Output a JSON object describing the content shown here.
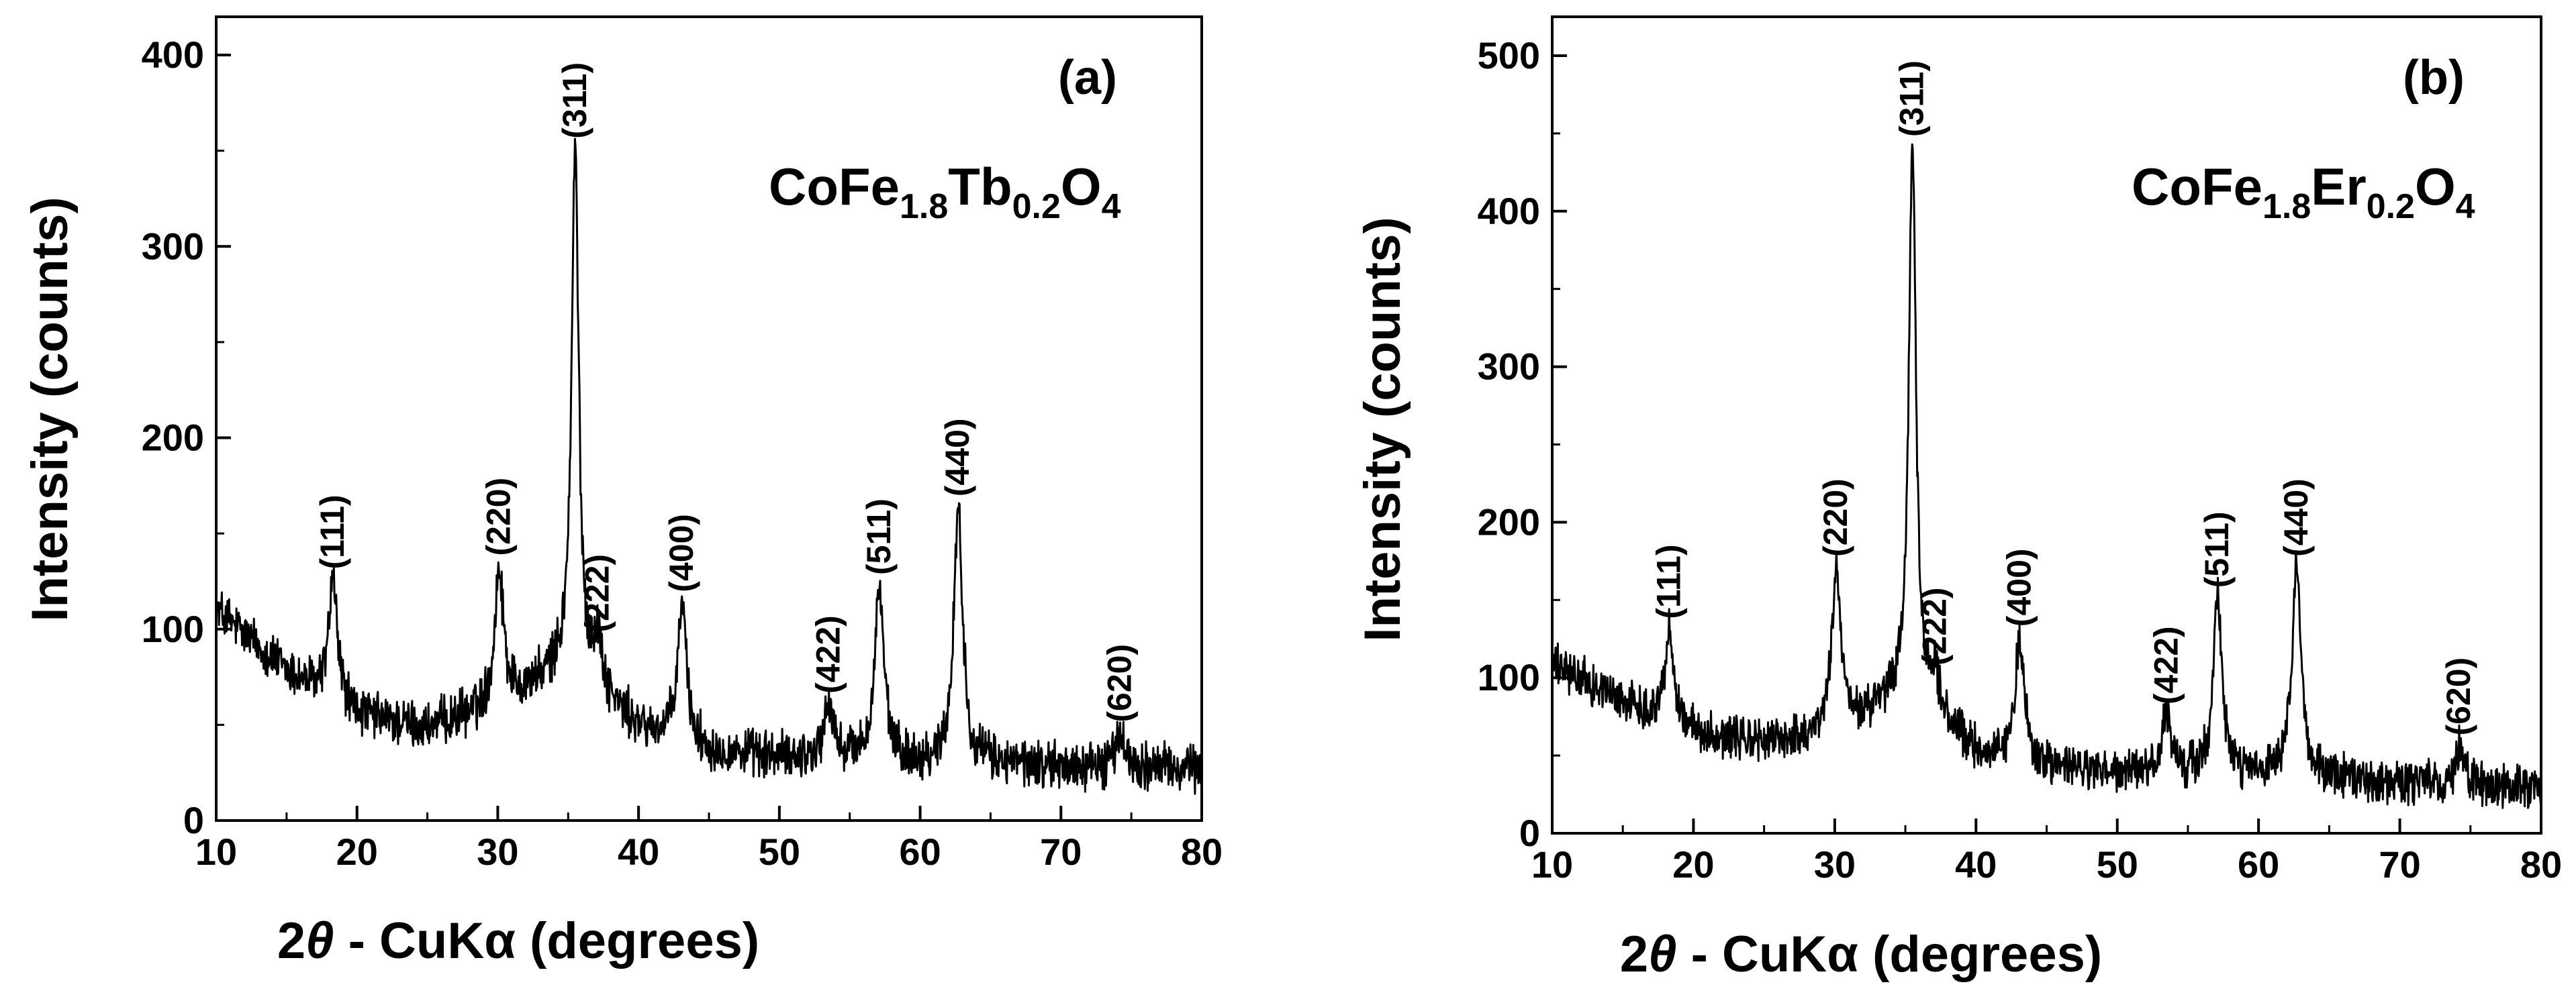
{
  "figure": {
    "panels": [
      {
        "panel_label": "(a)",
        "formula": {
          "base1": "CoFe",
          "sub1": "1.8",
          "base2": "Tb",
          "sub2": "0.2",
          "base3": "O",
          "sub3": "4"
        },
        "xlabel": {
          "prefix": "2",
          "theta": "θ",
          "rest": " - CuKα (degrees)"
        },
        "ylabel": "Intensity (counts)"
      },
      {
        "panel_label": "(b)",
        "formula": {
          "base1": "CoFe",
          "sub1": "1.8",
          "base2": "Er",
          "sub2": "0.2",
          "base3": "O",
          "sub3": "4"
        },
        "xlabel": {
          "prefix": "2",
          "theta": "θ",
          "rest": " - CuKα (degrees)"
        },
        "ylabel": "Intensity (counts)"
      }
    ]
  },
  "chart_data": [
    {
      "type": "line",
      "title": "CoFe1.8Tb0.2O4",
      "panel": "(a)",
      "xlabel": "2θ - CuKα (degrees)",
      "ylabel": "Intensity (counts)",
      "xlim": [
        10,
        80
      ],
      "ylim": [
        0,
        420
      ],
      "xticks": [
        10,
        20,
        30,
        40,
        50,
        60,
        70,
        80
      ],
      "yticks": [
        0,
        100,
        200,
        300,
        400
      ],
      "background_points": [
        [
          10,
          110
        ],
        [
          15,
          78
        ],
        [
          20,
          55
        ],
        [
          25,
          48
        ],
        [
          30,
          60
        ],
        [
          35,
          80
        ],
        [
          40,
          48
        ],
        [
          45,
          36
        ],
        [
          50,
          33
        ],
        [
          55,
          33
        ],
        [
          60,
          30
        ],
        [
          65,
          30
        ],
        [
          70,
          28
        ],
        [
          75,
          28
        ],
        [
          80,
          27
        ]
      ],
      "noise_amplitude": 10,
      "peaks": [
        {
          "hkl": "(111)",
          "two_theta": 18.3,
          "intensity": 125
        },
        {
          "hkl": "(220)",
          "two_theta": 30.1,
          "intensity": 132
        },
        {
          "hkl": "(311)",
          "two_theta": 35.5,
          "intensity": 350
        },
        {
          "hkl": "(222)",
          "two_theta": 37.1,
          "intensity": 92
        },
        {
          "hkl": "(400)",
          "two_theta": 43.1,
          "intensity": 113
        },
        {
          "hkl": "(422)",
          "two_theta": 53.5,
          "intensity": 60
        },
        {
          "hkl": "(511)",
          "two_theta": 57.1,
          "intensity": 122
        },
        {
          "hkl": "(440)",
          "two_theta": 62.7,
          "intensity": 163
        },
        {
          "hkl": "(620)",
          "two_theta": 74.2,
          "intensity": 45
        }
      ]
    },
    {
      "type": "line",
      "title": "CoFe1.8Er0.2O4",
      "panel": "(b)",
      "xlabel": "2θ - CuKα (degrees)",
      "ylabel": "Intensity (counts)",
      "xlim": [
        10,
        80
      ],
      "ylim": [
        0,
        525
      ],
      "xticks": [
        10,
        20,
        30,
        40,
        50,
        60,
        70,
        80
      ],
      "yticks": [
        0,
        100,
        200,
        300,
        400,
        500
      ],
      "background_points": [
        [
          10,
          108
        ],
        [
          15,
          85
        ],
        [
          20,
          65
        ],
        [
          25,
          58
        ],
        [
          30,
          65
        ],
        [
          35,
          88
        ],
        [
          40,
          52
        ],
        [
          45,
          42
        ],
        [
          50,
          38
        ],
        [
          55,
          38
        ],
        [
          60,
          36
        ],
        [
          65,
          35
        ],
        [
          70,
          32
        ],
        [
          75,
          30
        ],
        [
          80,
          30
        ]
      ],
      "noise_amplitude": 11,
      "peaks": [
        {
          "hkl": "(111)",
          "two_theta": 18.3,
          "intensity": 130
        },
        {
          "hkl": "(220)",
          "two_theta": 30.1,
          "intensity": 170
        },
        {
          "hkl": "(311)",
          "two_theta": 35.5,
          "intensity": 440
        },
        {
          "hkl": "(222)",
          "two_theta": 37.1,
          "intensity": 100
        },
        {
          "hkl": "(400)",
          "two_theta": 43.1,
          "intensity": 125
        },
        {
          "hkl": "(422)",
          "two_theta": 53.5,
          "intensity": 75
        },
        {
          "hkl": "(511)",
          "two_theta": 57.1,
          "intensity": 150
        },
        {
          "hkl": "(440)",
          "two_theta": 62.7,
          "intensity": 170
        },
        {
          "hkl": "(620)",
          "two_theta": 74.2,
          "intensity": 55
        }
      ]
    }
  ]
}
